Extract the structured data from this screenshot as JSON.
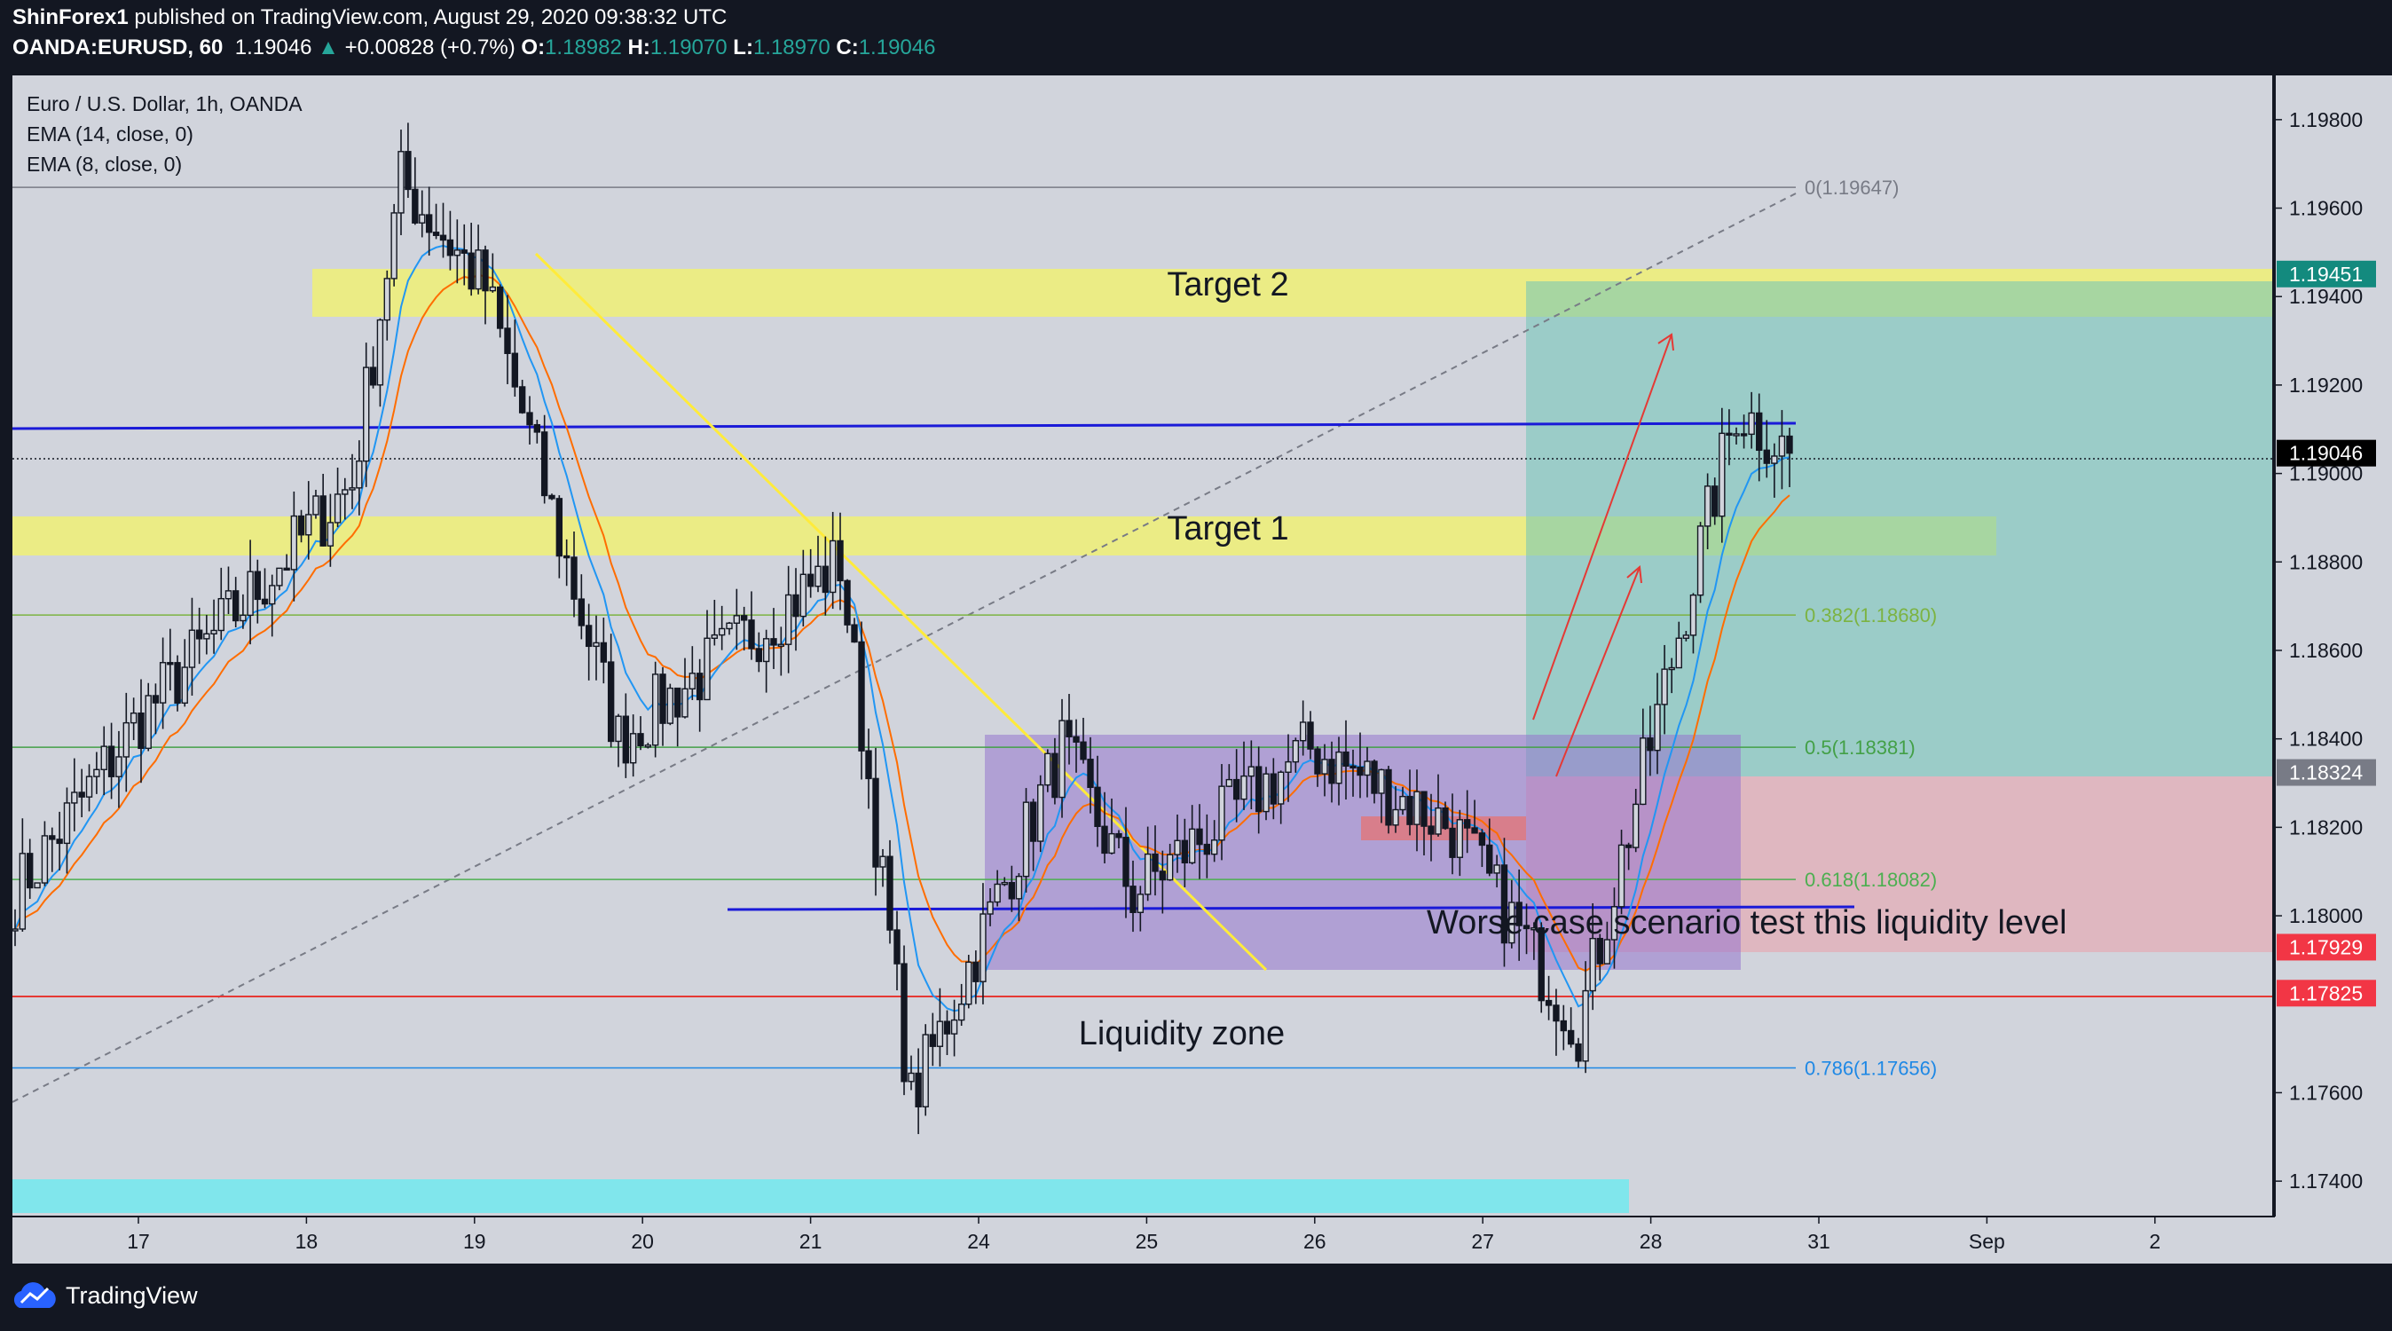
{
  "header": {
    "publisher": "ShinForex1",
    "published_text": "published on TradingView.com, August 29, 2020 09:38:32 UTC",
    "symbol": "OANDA:EURUSD, 60",
    "last": "1.19046",
    "change": "+0.00828 (+0.7%)",
    "o_label": "O:",
    "o": "1.18982",
    "h_label": "H:",
    "h": "1.19070",
    "l_label": "L:",
    "l": "1.18970",
    "c_label": "C:",
    "c": "1.19046"
  },
  "legend": {
    "title": "Euro / U.S. Dollar, 1h, OANDA",
    "ema14": "EMA (14, close, 0)",
    "ema8": "EMA (8, close, 0)"
  },
  "branding": {
    "logo_text": "TradingView",
    "logo_icon": "tradingview-cloud-icon"
  },
  "colors": {
    "background": "#d1d4dc",
    "frame": "#131722",
    "up": "#26a69a",
    "candle": "#131722",
    "ema14": "#2196f3",
    "ema8": "#ff6d00",
    "blue_line": "#1a1ad8",
    "red_line": "#e53935",
    "target_zone": "#f0f076",
    "liquidity_box": "#9575cd",
    "profit_zone": "#7fc7bf",
    "loss_zone": "#e8a0a8",
    "cyan_bar": "#80e6ec"
  },
  "chart_data": {
    "type": "candlestick",
    "title": "Euro / U.S. Dollar, 1h, OANDA",
    "x_ticks": [
      "17",
      "18",
      "19",
      "20",
      "21",
      "24",
      "25",
      "26",
      "27",
      "28",
      "31",
      "Sep",
      "2"
    ],
    "y_ticks": [
      "1.19800",
      "1.19600",
      "1.19400",
      "1.19200",
      "1.19000",
      "1.18800",
      "1.18600",
      "1.18400",
      "1.18200",
      "1.18000",
      "1.17600",
      "1.17400"
    ],
    "ylim": [
      1.1732,
      1.199
    ],
    "price_tags": [
      {
        "label": "1.19451",
        "value": 1.19451,
        "color": "#138a7e"
      },
      {
        "label": "1.19046",
        "value": 1.19046,
        "color": "#000000"
      },
      {
        "label": "1.18324",
        "value": 1.18324,
        "color": "#787b86"
      },
      {
        "label": "1.17929",
        "value": 1.17929,
        "color": "#f23645"
      },
      {
        "label": "1.17825",
        "value": 1.17825,
        "color": "#f23645"
      }
    ],
    "fib_levels": [
      {
        "label": "0(1.19647)",
        "value": 1.19647,
        "color": "#787b86"
      },
      {
        "label": "0.382(1.18680)",
        "value": 1.1868,
        "color": "#7cb342"
      },
      {
        "label": "0.5(1.18381)",
        "value": 1.18381,
        "color": "#43a047"
      },
      {
        "label": "0.618(1.18082)",
        "value": 1.18082,
        "color": "#4caf50"
      },
      {
        "label": "0.786(1.17656)",
        "value": 1.17656,
        "color": "#1e88e5"
      }
    ],
    "annotations": [
      "Target 2",
      "Target 1",
      "Liquidity zone",
      "Worse case scenario test this liquidity level"
    ],
    "key_points": [
      {
        "x": "16",
        "y": 1.1805
      },
      {
        "x": "17",
        "y": 1.1845
      },
      {
        "x": "18",
        "y": 1.1898
      },
      {
        "x": "18",
        "y": 1.1966
      },
      {
        "x": "19",
        "y": 1.1942
      },
      {
        "x": "20",
        "y": 1.184
      },
      {
        "x": "21",
        "y": 1.188
      },
      {
        "x": "21",
        "y": 1.1758
      },
      {
        "x": "24",
        "y": 1.1838
      },
      {
        "x": "25",
        "y": 1.1805
      },
      {
        "x": "26",
        "y": 1.1838
      },
      {
        "x": "27",
        "y": 1.182
      },
      {
        "x": "27",
        "y": 1.1775
      },
      {
        "x": "28",
        "y": 1.1915
      },
      {
        "x": "28",
        "y": 1.19046
      }
    ]
  }
}
